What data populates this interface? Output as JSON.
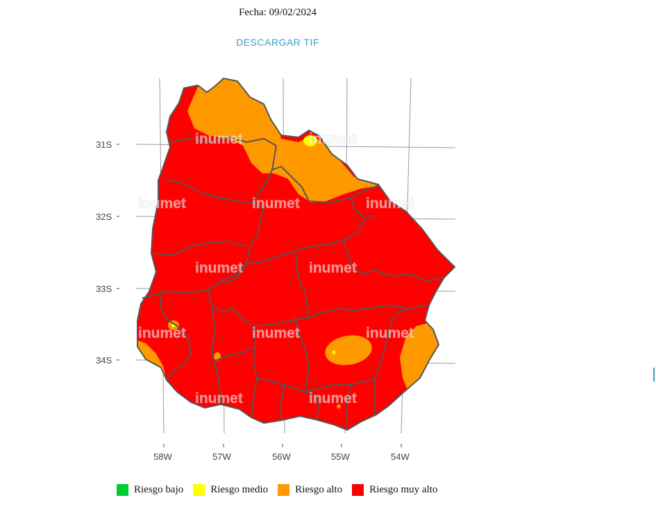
{
  "header": {
    "date_text": "Fecha: 09/02/2024",
    "download_label": "DESCARGAR TIF"
  },
  "map": {
    "lat_labels": [
      "31S",
      "32S",
      "33S",
      "34S"
    ],
    "lon_labels": [
      "58W",
      "57W",
      "56W",
      "55W",
      "54W"
    ],
    "watermark": "inumet"
  },
  "legend": {
    "items": [
      {
        "label": "Riesgo bajo",
        "color": "#00cc33"
      },
      {
        "label": "Riesgo medio",
        "color": "#ffff00"
      },
      {
        "label": "Riesgo alto",
        "color": "#ff9900"
      },
      {
        "label": "Riesgo muy alto",
        "color": "#ff0000"
      }
    ]
  }
}
